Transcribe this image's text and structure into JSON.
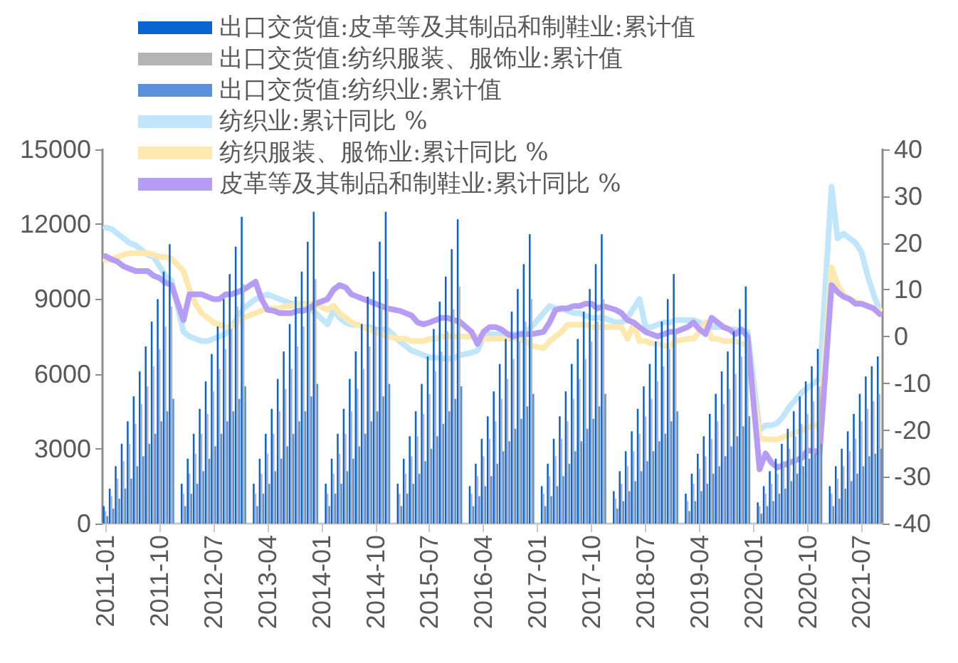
{
  "chart_data": {
    "type": "bar",
    "legend": "top left",
    "grid": false,
    "categories": [
      "2011-01",
      null,
      null,
      null,
      null,
      null,
      null,
      null,
      null,
      "2011-10",
      null,
      null,
      null,
      null,
      null,
      null,
      null,
      null,
      "2012-07",
      null,
      null,
      null,
      null,
      null,
      null,
      null,
      null,
      "2013-04",
      null,
      null,
      null,
      null,
      null,
      null,
      null,
      null,
      "2014-01",
      null,
      null,
      null,
      null,
      null,
      null,
      null,
      null,
      "2014-10",
      null,
      null,
      null,
      null,
      null,
      null,
      null,
      null,
      "2015-07",
      null,
      null,
      null,
      null,
      null,
      null,
      null,
      null,
      "2016-04",
      null,
      null,
      null,
      null,
      null,
      null,
      null,
      null,
      "2017-01",
      null,
      null,
      null,
      null,
      null,
      null,
      null,
      null,
      "2017-10",
      null,
      null,
      null,
      null,
      null,
      null,
      null,
      null,
      "2018-07",
      null,
      null,
      null,
      null,
      null,
      null,
      null,
      null,
      "2019-04",
      null,
      null,
      null,
      null,
      null,
      null,
      null,
      null,
      "2020-01",
      null,
      null,
      null,
      null,
      null,
      null,
      null,
      null,
      "2020-10",
      null,
      null,
      null,
      null,
      null,
      null,
      null,
      null,
      "2021-07",
      null,
      null,
      null
    ],
    "ylim": [
      0,
      15000
    ],
    "yticks": [
      0,
      3000,
      6000,
      9000,
      12000,
      15000
    ],
    "y2lim": [
      -40,
      40
    ],
    "y2ticks": [
      -40,
      -30,
      -20,
      -10,
      0,
      10,
      20,
      30,
      40
    ],
    "series": [
      {
        "name": "出口交货值:皮革等及其制品和制鞋业:累计值",
        "color": "#0a64d2",
        "values": [
          700,
          1400,
          2300,
          3200,
          4100,
          5100,
          6100,
          7100,
          8100,
          9000,
          10100,
          11200,
          null,
          1600,
          2600,
          3600,
          4600,
          5700,
          6800,
          7900,
          9000,
          10000,
          11100,
          12300,
          null,
          1600,
          2600,
          3600,
          4600,
          5800,
          6900,
          8000,
          9100,
          10100,
          11300,
          12500,
          null,
          1600,
          2600,
          3600,
          4600,
          5800,
          6900,
          8000,
          9100,
          10100,
          11300,
          12500,
          null,
          1600,
          2600,
          3500,
          4500,
          5600,
          6700,
          7800,
          8900,
          9900,
          11000,
          12200,
          null,
          1500,
          2400,
          3400,
          4300,
          5300,
          6400,
          7400,
          8500,
          9400,
          10400,
          11600,
          null,
          1500,
          2400,
          3400,
          4300,
          5300,
          6400,
          7400,
          8500,
          9400,
          10400,
          11600,
          null,
          1300,
          2100,
          2900,
          3700,
          4600,
          5500,
          6400,
          7300,
          8100,
          9000,
          10000,
          null,
          1200,
          2000,
          2800,
          3500,
          4400,
          5200,
          6100,
          6900,
          7700,
          8600,
          9500,
          null,
          850,
          1500,
          2100,
          2600,
          3200,
          3800,
          4500,
          5100,
          5700,
          6300,
          7000,
          null,
          1500,
          2300,
          3000,
          3700,
          4400,
          5200,
          5900,
          6300,
          6700
        ]
      },
      {
        "name": "出口交货值:纺织服装、服饰业:累计值",
        "color": "#b4b4b4",
        "values": [
          500,
          1100,
          1800,
          2500,
          3200,
          4000,
          4800,
          5500,
          6300,
          7000,
          7900,
          8700,
          null,
          1200,
          2000,
          2800,
          3600,
          4400,
          5300,
          6200,
          7000,
          7800,
          8700,
          9600,
          null,
          1200,
          2000,
          2800,
          3600,
          4500,
          5400,
          6200,
          7100,
          7900,
          8800,
          9800,
          null,
          1200,
          2000,
          2800,
          3600,
          4500,
          5400,
          6200,
          7100,
          7900,
          8800,
          9800,
          null,
          1200,
          2000,
          2700,
          3500,
          4400,
          5200,
          6100,
          6900,
          7700,
          8600,
          9500,
          null,
          1200,
          1900,
          2700,
          3400,
          4100,
          5000,
          5800,
          6600,
          7300,
          8100,
          9000,
          null,
          1200,
          1900,
          2700,
          3400,
          4100,
          5000,
          5800,
          6600,
          7300,
          8100,
          9000,
          null,
          1000,
          1600,
          2300,
          2900,
          3600,
          4300,
          5000,
          5700,
          6300,
          7000,
          7800,
          null,
          900,
          1600,
          2200,
          2700,
          3400,
          4100,
          4800,
          5400,
          6000,
          6700,
          7400,
          null,
          700,
          1200,
          1600,
          2000,
          2500,
          3000,
          3500,
          4000,
          4400,
          4900,
          5500,
          null,
          1200,
          1800,
          2300,
          2900,
          3400,
          4100,
          4600,
          4900,
          5200
        ]
      },
      {
        "name": "出口交货值:纺织业:累计值",
        "color": "#5b8fd9",
        "values": [
          300,
          600,
          1000,
          1400,
          1800,
          2300,
          2700,
          3200,
          3600,
          4100,
          4500,
          5000,
          null,
          700,
          1200,
          1600,
          2100,
          2600,
          3100,
          3600,
          4100,
          4500,
          5000,
          5500,
          null,
          700,
          1200,
          1600,
          2100,
          2600,
          3100,
          3600,
          4100,
          4500,
          5100,
          5600,
          null,
          700,
          1200,
          1600,
          2100,
          2600,
          3100,
          3600,
          4100,
          4500,
          5100,
          5600,
          null,
          700,
          1200,
          1600,
          2000,
          2500,
          3000,
          3500,
          4000,
          4500,
          5000,
          5500,
          null,
          700,
          1100,
          1500,
          1900,
          2400,
          2900,
          3300,
          3800,
          4200,
          4700,
          5200,
          null,
          700,
          1100,
          1500,
          1900,
          2400,
          2900,
          3300,
          3800,
          4200,
          4700,
          5200,
          null,
          600,
          900,
          1300,
          1700,
          2100,
          2500,
          2900,
          3300,
          3600,
          4100,
          4500,
          null,
          500,
          900,
          1300,
          1600,
          2000,
          2300,
          2700,
          3100,
          3500,
          3900,
          4300,
          null,
          400,
          700,
          900,
          1200,
          1400,
          1700,
          2000,
          2300,
          2600,
          2800,
          3200,
          null,
          700,
          1000,
          1400,
          1700,
          2000,
          2300,
          2700,
          2800,
          3000
        ]
      },
      {
        "name": "纺织业:累计同比 %",
        "type": "line",
        "axis": "y2",
        "color": "#bfe6fb",
        "values": [
          23.3,
          23,
          22,
          21,
          20,
          19.5,
          18.5,
          17.5,
          17,
          15,
          13,
          12,
          null,
          1,
          0,
          -0.5,
          -1,
          -1,
          -0.5,
          0,
          0.5,
          2,
          4,
          6,
          null,
          8,
          8.5,
          9,
          8.5,
          8,
          7.5,
          7,
          7,
          6.5,
          6,
          5,
          null,
          2.6,
          5.7,
          4,
          3,
          2.5,
          2.5,
          2,
          2,
          1.5,
          1.5,
          1.5,
          null,
          -1,
          -2,
          -3,
          -3.5,
          -4,
          -4.5,
          -4.5,
          -4.7,
          -4.7,
          -4.7,
          -4,
          null,
          -3.5,
          -3,
          0,
          0.5,
          0.5,
          0.5,
          0.5,
          0.5,
          0.5,
          1,
          2,
          null,
          5,
          6.5,
          6,
          6,
          5.5,
          5,
          5,
          4.5,
          4,
          4,
          4,
          null,
          3,
          3,
          4,
          6,
          8,
          2,
          2,
          2.5,
          3,
          3,
          3.5,
          null,
          3.5,
          3.5,
          3,
          2,
          2,
          2,
          2,
          1.5,
          1.5,
          1,
          1,
          null,
          -20,
          -19,
          -19,
          -18.5,
          -17,
          -15,
          -13.5,
          -12,
          -11,
          -10,
          -9,
          null,
          32,
          21,
          22,
          21,
          20,
          18,
          13,
          9,
          5.7
        ]
      },
      {
        "name": "纺织服装、服饰业:累计同比 %",
        "type": "line",
        "axis": "y2",
        "color": "#fde9b0",
        "values": [
          16.3,
          16.5,
          17,
          17.5,
          17.8,
          17.8,
          17.8,
          17.8,
          17.5,
          17,
          17,
          16.6,
          null,
          14,
          10,
          7,
          5,
          4,
          3,
          2.5,
          2,
          2,
          3,
          4,
          null,
          5,
          5.5,
          6,
          6,
          6,
          6.5,
          6.5,
          7,
          7,
          7,
          7,
          null,
          5.7,
          6.6,
          5,
          4,
          3,
          2.5,
          2,
          1.4,
          1,
          0.5,
          0,
          null,
          -0.5,
          -0.5,
          -1,
          -1,
          -1,
          -0.5,
          -0.5,
          0,
          0,
          0,
          0,
          null,
          0,
          0,
          -0.5,
          -0.5,
          -0.5,
          -0.5,
          -0.5,
          -0.5,
          -0.5,
          -1,
          -2,
          null,
          -2.5,
          -1,
          0,
          1,
          2.5,
          2.5,
          2.5,
          2.5,
          2,
          2,
          2,
          null,
          2,
          2,
          -0.5,
          2.6,
          -1,
          -1,
          -1.5,
          -1.5,
          -2,
          -2,
          -1,
          null,
          -0.5,
          -0.5,
          1,
          3,
          -0.5,
          -0.5,
          -1,
          -1,
          -1,
          -1.5,
          -2,
          null,
          -21.7,
          -22,
          -22,
          -22,
          -21.5,
          -21,
          -20.5,
          -20,
          -19.5,
          -19,
          -19,
          null,
          14.8,
          11,
          9,
          8,
          7.5,
          7,
          6.5,
          6,
          5.7
        ]
      },
      {
        "name": "皮革等及其制品和制鞋业:累计同比 %",
        "type": "line",
        "axis": "y2",
        "color": "#b69cf4",
        "values": [
          17.2,
          16.5,
          16,
          15,
          14.5,
          14,
          14,
          14,
          13,
          12.5,
          11.5,
          11,
          null,
          3.5,
          9,
          9,
          9,
          8.5,
          8,
          8,
          9,
          9,
          9.5,
          10,
          null,
          11.7,
          8,
          5.7,
          5.5,
          5,
          5,
          5,
          5.5,
          5.5,
          6,
          7,
          null,
          8,
          10,
          11,
          10.5,
          9,
          8.5,
          8,
          7.5,
          7,
          6.5,
          6,
          null,
          5.5,
          5,
          4.5,
          3,
          2.6,
          3,
          3.5,
          4,
          4,
          3.5,
          3.2,
          null,
          1,
          -1.6,
          1,
          2,
          2,
          1.5,
          0.5,
          0,
          0.5,
          0.5,
          0.5,
          null,
          1,
          3,
          5.7,
          6,
          6,
          6.5,
          6.5,
          7,
          7,
          6,
          6.5,
          null,
          5.7,
          5,
          3.5,
          3,
          2,
          1,
          0.5,
          0,
          0.5,
          1,
          1,
          null,
          2,
          3,
          1.5,
          0.5,
          4,
          3,
          2,
          1.5,
          0.5,
          1.5,
          0,
          null,
          -28.4,
          -25,
          -27,
          -28,
          -27.5,
          -27,
          -26.5,
          -26,
          -24.4,
          -24.4,
          -25,
          null,
          11,
          9.5,
          8.5,
          8,
          7,
          7,
          6.5,
          6,
          4.8
        ]
      }
    ]
  }
}
